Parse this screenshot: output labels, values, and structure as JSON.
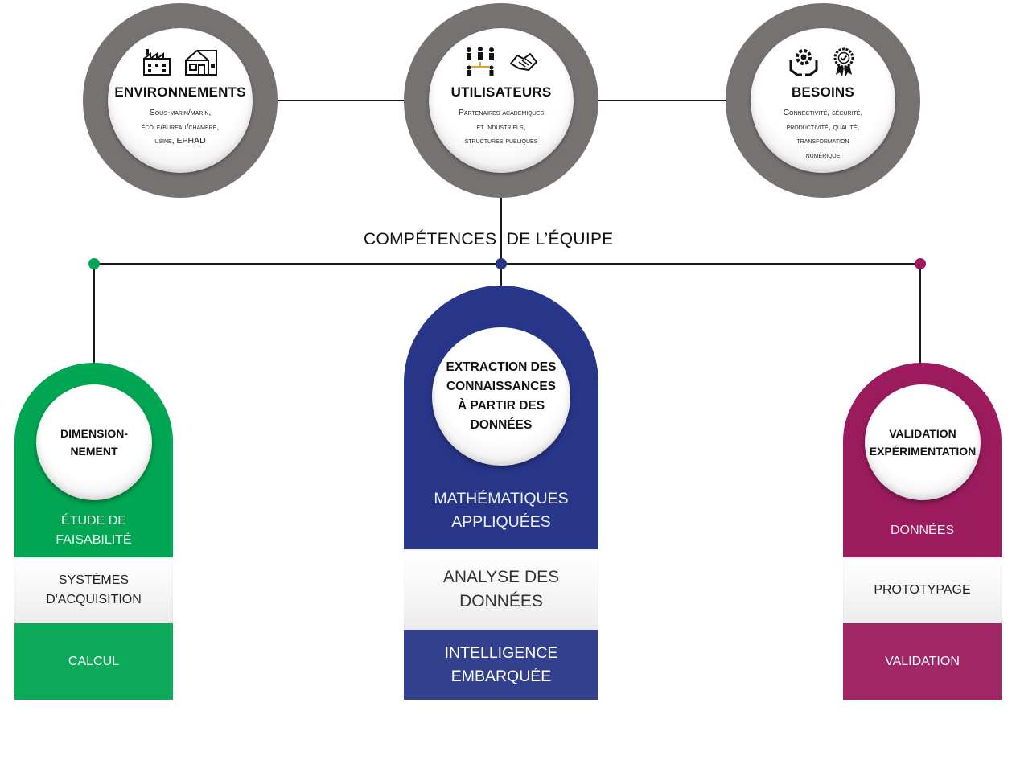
{
  "colors": {
    "green": "#00a651",
    "navy": "#283689",
    "magenta": "#9b1b5e",
    "ring_gray": "#777272"
  },
  "top_nodes": [
    {
      "title": "ENVIRONNEMENTS",
      "body": "Sous-marin/marin,\nécole/bureau/chambre,\nusine, EPHAD",
      "icons": [
        "factory-icon",
        "house-icon"
      ]
    },
    {
      "title": "UTILISATEURS",
      "body": "Partenaires académiques\net industriels,\nstructures publiques",
      "icons": [
        "people-network-icon",
        "handshake-icon"
      ]
    },
    {
      "title": "BESOINS",
      "body": "Connectivité, sécurité,\nproductivité, qualité,\ntransformation\nnumérique",
      "icons": [
        "gear-hands-icon",
        "quality-badge-icon"
      ]
    }
  ],
  "section_title": "COMPÉTENCES  DE L’ÉQUIPE",
  "columns": [
    {
      "title": "DIMENSION-\nNEMENT",
      "items": [
        "ÉTUDE DE\nFAISABILITÉ",
        "SYSTÈMES\nD'ACQUISITION",
        "CALCUL"
      ]
    },
    {
      "title": "EXTRACTION DES\nCONNAISSANCES\nÀ PARTIR DES\nDONNÉES",
      "items": [
        "MATHÉMATIQUES\nAPPLIQUÉES",
        "ANALYSE DES\nDONNÉES",
        "INTELLIGENCE\nEMBARQUÉE"
      ]
    },
    {
      "title": "VALIDATION\nEXPÉRIMENTATION",
      "items": [
        "DONNÉES",
        "PROTOTYPAGE",
        "VALIDATION"
      ]
    }
  ]
}
